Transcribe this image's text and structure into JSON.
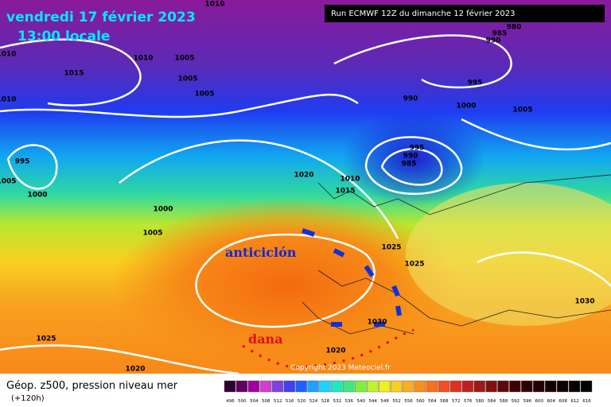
{
  "header": {
    "date": "vendredi 17 février 2023",
    "time": "13:00 locale",
    "run": "Run ECMWF 12Z du dimanche 12 février 2023"
  },
  "footer": {
    "title": "Géop. z500, pression niveau mer",
    "lead": "(+120h)",
    "copyright": "Copyright 2023 Meteociel.fr"
  },
  "annotations": {
    "high": "anticiclón",
    "low": "dana"
  },
  "isobar_labels": [
    "1010",
    "1010",
    "1010",
    "1005",
    "1015",
    "1005",
    "1005",
    "1010",
    "995",
    "1005",
    "1000",
    "1000",
    "1005",
    "1020",
    "1010",
    "1015",
    "985",
    "980",
    "990",
    "995",
    "990",
    "1000",
    "1005",
    "995",
    "990",
    "985",
    "1025",
    "1025",
    "1030",
    "1030",
    "1025",
    "1020",
    "1020"
  ],
  "scale": [
    496,
    500,
    504,
    508,
    512,
    516,
    520,
    524,
    528,
    532,
    536,
    540,
    544,
    548,
    552,
    556,
    560,
    564,
    568,
    572,
    576,
    580,
    584,
    588,
    592,
    596,
    600,
    604,
    608,
    612,
    616
  ]
}
